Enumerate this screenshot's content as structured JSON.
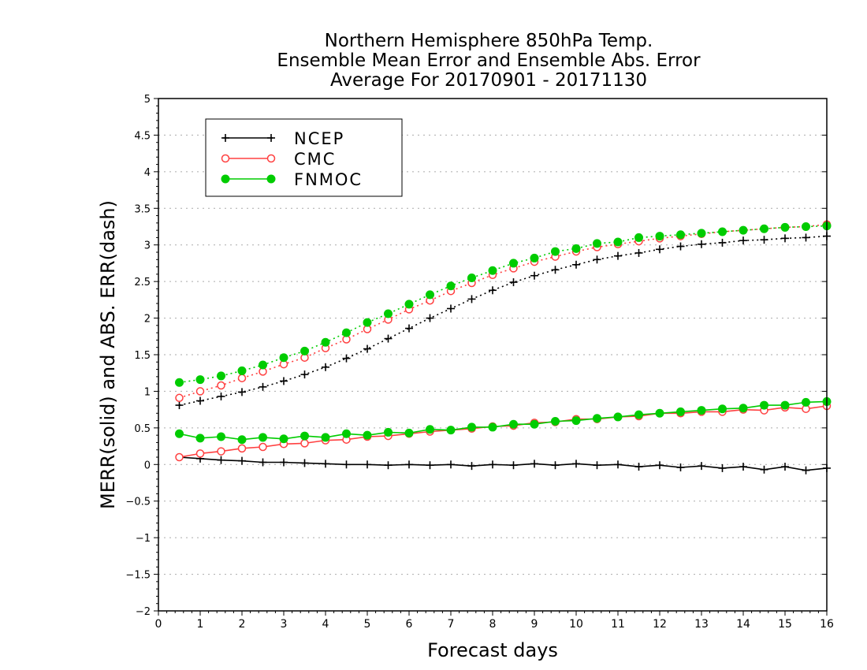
{
  "chart_data": {
    "type": "line",
    "title": [
      "Northern Hemisphere 850hPa Temp.",
      "Ensemble Mean Error and Ensemble Abs. Error",
      "Average For 20170901 - 20171130"
    ],
    "xlabel": "Forecast days",
    "ylabel": "MERR(solid) and ABS. ERR(dash)",
    "xlim": [
      0,
      16
    ],
    "ylim": [
      -2,
      5
    ],
    "xticks": [
      "0",
      "1",
      "2",
      "3",
      "4",
      "5",
      "6",
      "7",
      "8",
      "9",
      "10",
      "11",
      "12",
      "13",
      "14",
      "15",
      "16"
    ],
    "yticks": [
      "−2",
      "−1.5",
      "−1",
      "−0.5",
      "0",
      "0.5",
      "1",
      "1.5",
      "2",
      "2.5",
      "3",
      "3.5",
      "4",
      "4.5",
      "5"
    ],
    "grid": true,
    "legend": "top-left",
    "x": [
      0.5,
      1,
      1.5,
      2,
      2.5,
      3,
      3.5,
      4,
      4.5,
      5,
      5.5,
      6,
      6.5,
      7,
      7.5,
      8,
      8.5,
      9,
      9.5,
      10,
      10.5,
      11,
      11.5,
      12,
      12.5,
      13,
      13.5,
      14,
      14.5,
      15,
      15.5,
      16
    ],
    "series": [
      {
        "name": "NCEP",
        "color": "#000000",
        "marker": "plus",
        "merr": [
          0.1,
          0.08,
          0.06,
          0.05,
          0.03,
          0.03,
          0.02,
          0.01,
          0.0,
          0.0,
          -0.01,
          0.0,
          -0.01,
          0.0,
          -0.02,
          0.0,
          -0.01,
          0.01,
          -0.01,
          0.01,
          -0.01,
          0.0,
          -0.03,
          -0.01,
          -0.04,
          -0.02,
          -0.05,
          -0.03,
          -0.07,
          -0.03,
          -0.08,
          -0.05
        ],
        "abs_err": [
          0.81,
          0.87,
          0.93,
          0.99,
          1.06,
          1.14,
          1.23,
          1.33,
          1.45,
          1.58,
          1.72,
          1.86,
          2.0,
          2.13,
          2.26,
          2.38,
          2.49,
          2.58,
          2.66,
          2.73,
          2.8,
          2.85,
          2.89,
          2.94,
          2.98,
          3.01,
          3.03,
          3.06,
          3.07,
          3.09,
          3.1,
          3.12
        ]
      },
      {
        "name": "CMC",
        "color": "#ff4040",
        "marker": "open-circle",
        "merr": [
          0.1,
          0.15,
          0.18,
          0.22,
          0.24,
          0.28,
          0.29,
          0.33,
          0.34,
          0.38,
          0.39,
          0.42,
          0.45,
          0.47,
          0.49,
          0.52,
          0.53,
          0.57,
          0.58,
          0.62,
          0.62,
          0.65,
          0.66,
          0.7,
          0.7,
          0.72,
          0.72,
          0.75,
          0.74,
          0.78,
          0.76,
          0.8
        ],
        "abs_err": [
          0.91,
          1.0,
          1.08,
          1.18,
          1.27,
          1.37,
          1.46,
          1.59,
          1.71,
          1.85,
          1.98,
          2.12,
          2.24,
          2.37,
          2.48,
          2.59,
          2.68,
          2.77,
          2.84,
          2.91,
          2.97,
          3.01,
          3.05,
          3.09,
          3.12,
          3.15,
          3.18,
          3.2,
          3.22,
          3.24,
          3.25,
          3.28
        ]
      },
      {
        "name": "FNMOC",
        "color": "#00cc00",
        "marker": "filled-circle",
        "merr": [
          0.42,
          0.36,
          0.38,
          0.34,
          0.37,
          0.35,
          0.39,
          0.37,
          0.42,
          0.4,
          0.44,
          0.43,
          0.48,
          0.47,
          0.51,
          0.51,
          0.55,
          0.55,
          0.59,
          0.6,
          0.63,
          0.65,
          0.68,
          0.7,
          0.72,
          0.74,
          0.76,
          0.77,
          0.81,
          0.81,
          0.85,
          0.86
        ],
        "abs_err": [
          1.12,
          1.16,
          1.21,
          1.28,
          1.36,
          1.46,
          1.55,
          1.67,
          1.8,
          1.94,
          2.06,
          2.19,
          2.32,
          2.44,
          2.55,
          2.65,
          2.75,
          2.82,
          2.91,
          2.95,
          3.02,
          3.04,
          3.1,
          3.12,
          3.14,
          3.16,
          3.18,
          3.2,
          3.22,
          3.24,
          3.25,
          3.26
        ]
      }
    ]
  }
}
